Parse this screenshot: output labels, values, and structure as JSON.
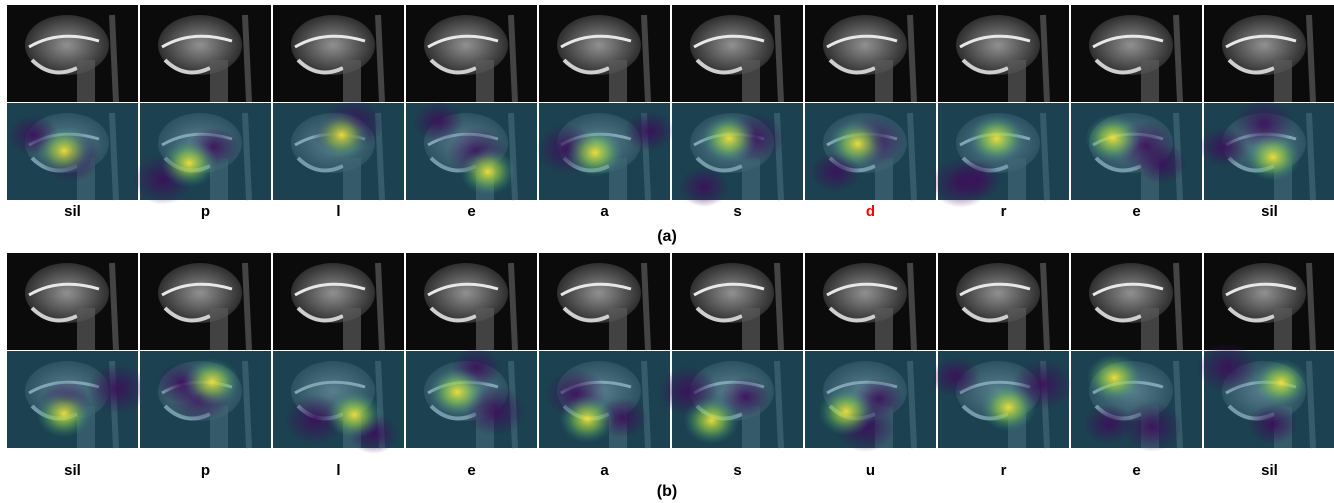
{
  "panels": [
    {
      "caption": "(a)",
      "frames": [
        {
          "label": "sil"
        },
        {
          "label": "p"
        },
        {
          "label": "l"
        },
        {
          "label": "e"
        },
        {
          "label": "a"
        },
        {
          "label": "s"
        },
        {
          "label": "d",
          "color": "#ff0000"
        },
        {
          "label": "r"
        },
        {
          "label": "e"
        },
        {
          "label": "sil"
        }
      ]
    },
    {
      "caption": "(b)",
      "frames": [
        {
          "label": "sil"
        },
        {
          "label": "p"
        },
        {
          "label": "l"
        },
        {
          "label": "e"
        },
        {
          "label": "a"
        },
        {
          "label": "s"
        },
        {
          "label": "u"
        },
        {
          "label": "r"
        },
        {
          "label": "e"
        },
        {
          "label": "sil"
        }
      ]
    }
  ]
}
